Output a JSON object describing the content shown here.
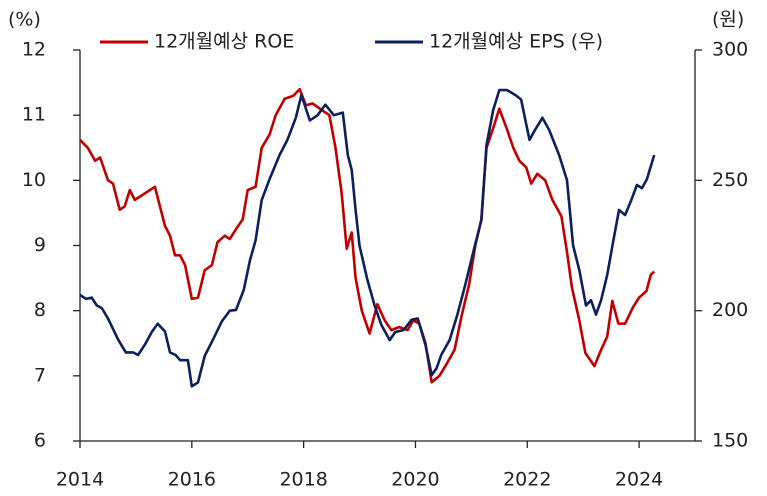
{
  "chart_data": {
    "type": "line",
    "y_label": "(%)",
    "y2_label": "(원)",
    "xlim": [
      2014,
      2025
    ],
    "xticks": [
      2014,
      2016,
      2018,
      2020,
      2022,
      2024
    ],
    "ylim": [
      6,
      12
    ],
    "yticks": [
      6,
      7,
      8,
      9,
      10,
      11,
      12
    ],
    "y2lim": [
      150,
      300
    ],
    "y2ticks": [
      150,
      200,
      250,
      300
    ],
    "grid": false,
    "legend": "top",
    "series": [
      {
        "name": "12개월예상 ROE",
        "color": "#c00000",
        "x": [
          2014.0,
          2014.14,
          2014.27,
          2014.36,
          2014.5,
          2014.59,
          2014.71,
          2014.8,
          2014.89,
          2014.98,
          2015.16,
          2015.34,
          2015.52,
          2015.61,
          2015.7,
          2015.79,
          2015.88,
          2016.0,
          2016.11,
          2016.23,
          2016.36,
          2016.46,
          2016.59,
          2016.68,
          2016.79,
          2016.91,
          2017.0,
          2017.14,
          2017.25,
          2017.39,
          2017.5,
          2017.66,
          2017.82,
          2017.93,
          2018.04,
          2018.16,
          2018.29,
          2018.46,
          2018.57,
          2018.68,
          2018.77,
          2018.86,
          2018.93,
          2019.04,
          2019.18,
          2019.32,
          2019.45,
          2019.57,
          2019.71,
          2019.86,
          2019.96,
          2020.07,
          2020.18,
          2020.29,
          2020.43,
          2020.57,
          2020.7,
          2020.82,
          2020.96,
          2021.07,
          2021.18,
          2021.27,
          2021.39,
          2021.5,
          2021.63,
          2021.75,
          2021.86,
          2021.98,
          2022.07,
          2022.18,
          2022.32,
          2022.45,
          2022.61,
          2022.71,
          2022.8,
          2022.93,
          2023.04,
          2023.2,
          2023.32,
          2023.43,
          2023.52,
          2023.63,
          2023.75,
          2023.89,
          2024.0,
          2024.13,
          2024.21,
          2024.27
        ],
        "values": [
          10.62,
          10.5,
          10.3,
          10.35,
          10.0,
          9.95,
          9.55,
          9.6,
          9.85,
          9.7,
          9.8,
          9.9,
          9.3,
          9.15,
          8.85,
          8.85,
          8.7,
          8.18,
          8.2,
          8.62,
          8.7,
          9.05,
          9.15,
          9.1,
          9.25,
          9.4,
          9.85,
          9.9,
          10.5,
          10.7,
          11.0,
          11.25,
          11.3,
          11.4,
          11.15,
          11.18,
          11.1,
          11.0,
          10.5,
          9.8,
          8.95,
          9.2,
          8.5,
          8.0,
          7.65,
          8.1,
          7.85,
          7.7,
          7.75,
          7.7,
          7.85,
          7.8,
          7.5,
          6.9,
          7.0,
          7.2,
          7.4,
          7.9,
          8.4,
          9.0,
          9.4,
          10.5,
          10.8,
          11.1,
          10.8,
          10.5,
          10.3,
          10.2,
          9.95,
          10.1,
          10.0,
          9.7,
          9.45,
          8.9,
          8.35,
          7.85,
          7.35,
          7.15,
          7.4,
          7.6,
          8.15,
          7.8,
          7.8,
          8.05,
          8.2,
          8.3,
          8.55,
          8.6
        ]
      },
      {
        "name": "12개월예상 EPS (우)",
        "color": "#0d1f5c",
        "axis": "y2",
        "x": [
          2014.0,
          2014.11,
          2014.21,
          2014.3,
          2014.39,
          2014.5,
          2014.68,
          2014.82,
          2014.95,
          2015.04,
          2015.16,
          2015.29,
          2015.39,
          2015.52,
          2015.61,
          2015.71,
          2015.79,
          2015.93,
          2016.0,
          2016.11,
          2016.23,
          2016.38,
          2016.54,
          2016.68,
          2016.79,
          2016.93,
          2017.04,
          2017.14,
          2017.25,
          2017.39,
          2017.57,
          2017.71,
          2017.86,
          2017.96,
          2018.11,
          2018.25,
          2018.39,
          2018.54,
          2018.7,
          2018.79,
          2018.86,
          2018.93,
          2019.0,
          2019.14,
          2019.27,
          2019.39,
          2019.54,
          2019.64,
          2019.79,
          2019.93,
          2020.04,
          2020.18,
          2020.29,
          2020.38,
          2020.46,
          2020.61,
          2020.75,
          2020.89,
          2021.04,
          2021.18,
          2021.27,
          2021.39,
          2021.5,
          2021.64,
          2021.79,
          2021.89,
          2022.04,
          2022.14,
          2022.27,
          2022.39,
          2022.57,
          2022.71,
          2022.82,
          2022.93,
          2023.05,
          2023.14,
          2023.23,
          2023.32,
          2023.43,
          2023.54,
          2023.64,
          2023.75,
          2023.86,
          2023.96,
          2024.05,
          2024.14,
          2024.27
        ],
        "values": [
          206,
          204.5,
          205,
          202,
          201,
          197,
          189,
          184,
          184,
          183,
          187,
          192,
          195,
          192,
          184,
          183,
          181,
          181,
          171,
          172.5,
          182.6,
          189,
          196,
          200,
          200.3,
          208,
          219.4,
          227,
          242.4,
          250.4,
          259.7,
          265.5,
          274,
          282.7,
          273,
          275,
          279,
          275,
          276,
          259.7,
          254,
          238.6,
          225,
          211.8,
          202,
          194.5,
          188.7,
          191.8,
          192.6,
          196.5,
          197,
          186.8,
          175.3,
          178,
          183,
          188.7,
          198.5,
          209.8,
          223,
          234.8,
          263.5,
          277,
          284.6,
          284.6,
          282.7,
          281,
          265.5,
          269.4,
          274,
          269.4,
          259.7,
          250,
          225,
          215.6,
          202,
          204,
          198.5,
          204,
          213.7,
          227,
          238.6,
          236.7,
          242.4,
          248.2,
          247,
          250.4,
          259.7
        ]
      }
    ]
  }
}
